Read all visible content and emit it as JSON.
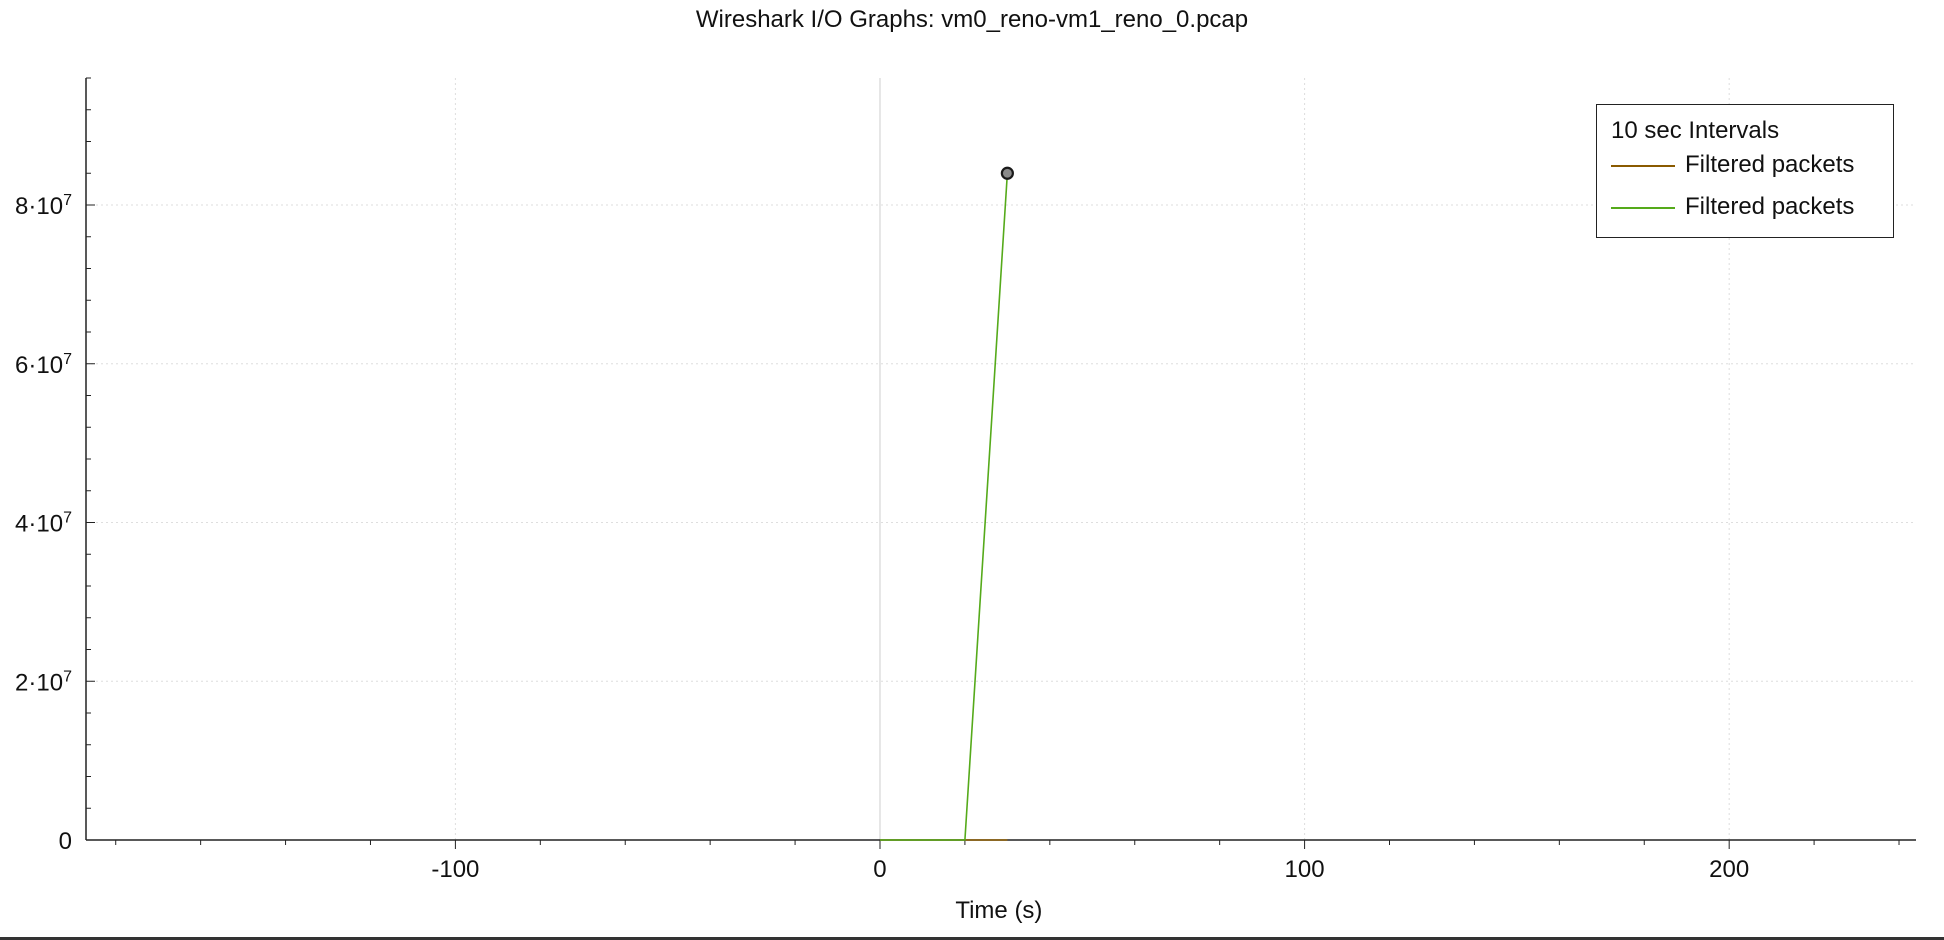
{
  "chart_data": {
    "type": "line",
    "title": "Wireshark I/O Graphs: vm0_reno-vm1_reno_0.pcap",
    "xlabel": "Time (s)",
    "ylabel": "",
    "xlim": [
      -187,
      244
    ],
    "ylim": [
      0,
      96000000
    ],
    "x_ticks": [
      {
        "value": -100,
        "label": "-100"
      },
      {
        "value": 0,
        "label": "0"
      },
      {
        "value": 100,
        "label": "100"
      },
      {
        "value": 200,
        "label": "200"
      }
    ],
    "x_minor_step": 20,
    "y_ticks": [
      {
        "value": 0,
        "base": "0",
        "exp": ""
      },
      {
        "value": 20000000,
        "base": "2·10",
        "exp": "7"
      },
      {
        "value": 40000000,
        "base": "4·10",
        "exp": "7"
      },
      {
        "value": 60000000,
        "base": "6·10",
        "exp": "7"
      },
      {
        "value": 80000000,
        "base": "8·10",
        "exp": "7"
      }
    ],
    "y_minor_step": 4000000,
    "grid": true,
    "legend_title": "10 sec Intervals",
    "legend_position": "top-right",
    "series": [
      {
        "name": "Filtered packets",
        "color": "#8a5a00",
        "x": [
          0,
          10,
          20,
          30
        ],
        "y": [
          0,
          0,
          0,
          0
        ]
      },
      {
        "name": "Filtered packets",
        "color": "#55aa1a",
        "x": [
          0,
          10,
          20,
          30
        ],
        "y": [
          0,
          0,
          0,
          84000000
        ]
      }
    ],
    "marker": {
      "x": 30,
      "y": 84000000
    }
  }
}
